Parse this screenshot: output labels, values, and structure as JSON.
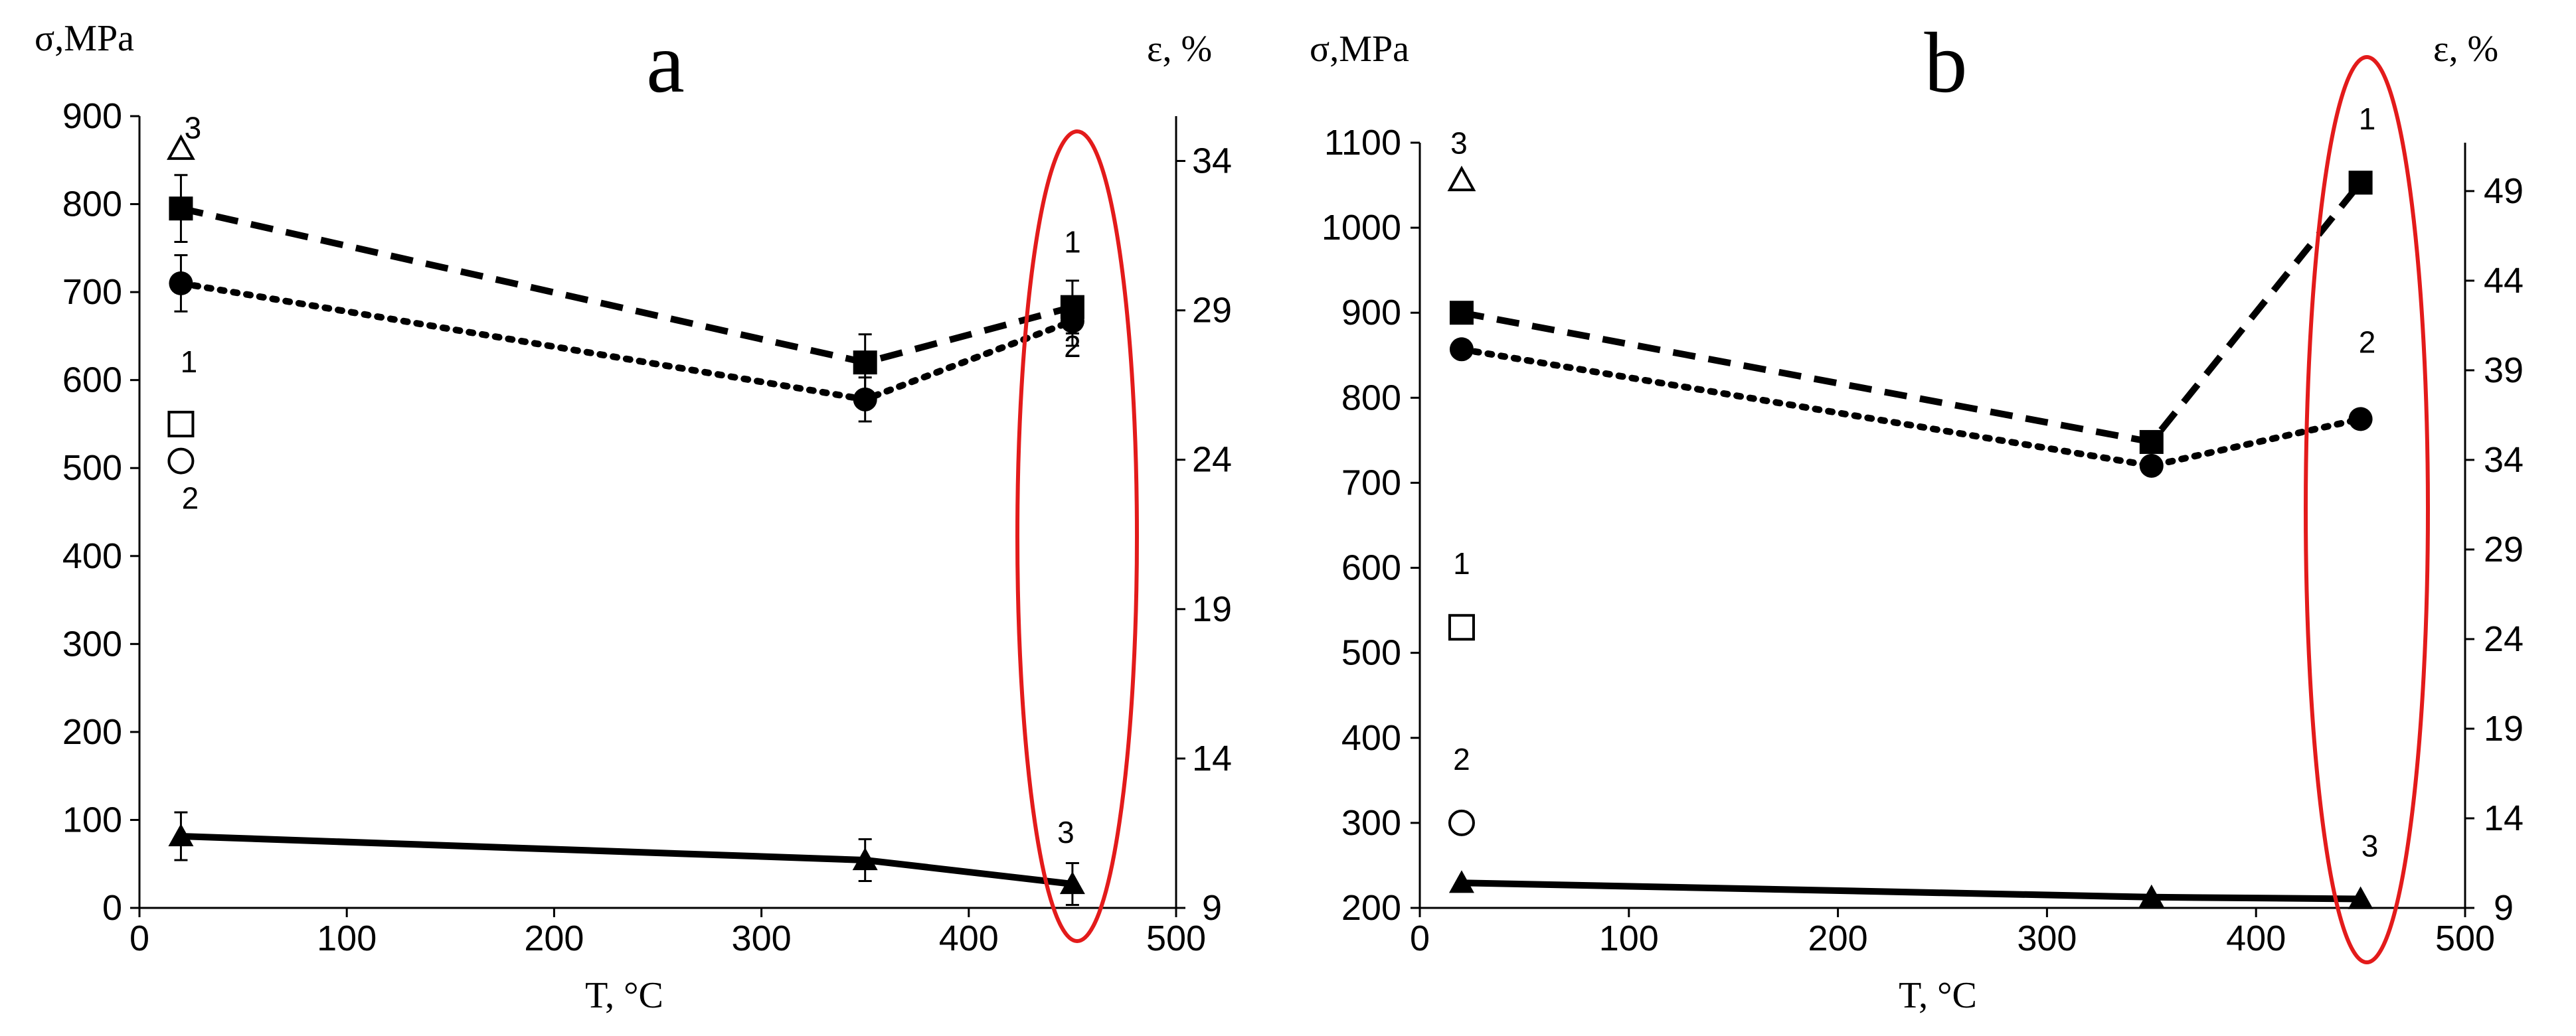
{
  "figure": {
    "description_free": true,
    "highlight_color": "#e31b1b",
    "line_color": "#000000"
  },
  "chart_data": [
    {
      "panel": "a",
      "type": "line",
      "ylabel_left": "σ,MPa",
      "ylabel_right": "ε, %",
      "xlabel": "T, °C",
      "xlim": [
        0,
        500
      ],
      "xticks": [
        0,
        100,
        200,
        300,
        400,
        500
      ],
      "ylim_left": [
        0,
        900
      ],
      "yticks_left": [
        0,
        100,
        200,
        300,
        400,
        500,
        600,
        700,
        800,
        900
      ],
      "ylim_right": [
        9,
        35.5
      ],
      "yticks_right": [
        9,
        14,
        19,
        24,
        29,
        34
      ],
      "series": [
        {
          "name": "1",
          "label": "1",
          "style": "dashed",
          "marker": "square",
          "axis": "left",
          "x": [
            20,
            350,
            450
          ],
          "y": [
            795,
            620,
            683
          ],
          "err": [
            38,
            32,
            30
          ]
        },
        {
          "name": "2",
          "label": "2",
          "style": "dotted",
          "marker": "circle",
          "axis": "left",
          "x": [
            20,
            350,
            450
          ],
          "y": [
            710,
            578,
            667
          ],
          "err": [
            32,
            25,
            28
          ]
        },
        {
          "name": "3",
          "label": "3",
          "style": "solid",
          "marker": "triangle",
          "axis": "right",
          "x": [
            20,
            350,
            450
          ],
          "y": [
            11.4,
            10.6,
            9.8
          ],
          "err": [
            0.8,
            0.7,
            0.7
          ]
        }
      ],
      "reference_points": [
        {
          "label": "1",
          "marker": "square-open",
          "axis": "left",
          "x": 20,
          "y": 550
        },
        {
          "label": "2",
          "marker": "circle-open",
          "axis": "left",
          "x": 20,
          "y": 508
        },
        {
          "label": "3",
          "marker": "triangle-open",
          "axis": "right",
          "x": 20,
          "y": 34.4
        }
      ],
      "series_labels_at_450": [
        "1",
        "2",
        "3"
      ],
      "highlight": {
        "shape": "ellipse",
        "around_x": 450
      }
    },
    {
      "panel": "b",
      "type": "line",
      "ylabel_left": "σ,MPa",
      "ylabel_right": "ε, %",
      "xlabel": "T, °C",
      "xlim": [
        0,
        500
      ],
      "xticks": [
        0,
        100,
        200,
        300,
        400,
        500
      ],
      "ylim_left": [
        200,
        1100
      ],
      "yticks_left": [
        200,
        300,
        400,
        500,
        600,
        700,
        800,
        900,
        1000,
        1100
      ],
      "ylim_right": [
        9,
        51.7
      ],
      "yticks_right": [
        9,
        14,
        19,
        24,
        29,
        34,
        39,
        44,
        49
      ],
      "series": [
        {
          "name": "1",
          "label": "1",
          "style": "dashed",
          "marker": "square",
          "axis": "left",
          "x": [
            20,
            350,
            450
          ],
          "y": [
            900,
            748,
            1053
          ]
        },
        {
          "name": "2",
          "label": "2",
          "style": "dotted",
          "marker": "circle",
          "axis": "left",
          "x": [
            20,
            350,
            450
          ],
          "y": [
            857,
            720,
            775
          ]
        },
        {
          "name": "3",
          "label": "3",
          "style": "solid",
          "marker": "triangle",
          "axis": "right",
          "x": [
            20,
            350,
            450
          ],
          "y": [
            10.4,
            9.6,
            9.5
          ]
        }
      ],
      "reference_points": [
        {
          "label": "1",
          "marker": "square-open",
          "axis": "left",
          "x": 20,
          "y": 530
        },
        {
          "label": "2",
          "marker": "circle-open",
          "axis": "left",
          "x": 20,
          "y": 300
        },
        {
          "label": "3",
          "marker": "triangle-open",
          "axis": "right",
          "x": 20,
          "y": 49.6
        }
      ],
      "series_labels_at_450": [
        "1",
        "2",
        "3"
      ],
      "highlight": {
        "shape": "ellipse",
        "around_x": 450
      }
    }
  ]
}
